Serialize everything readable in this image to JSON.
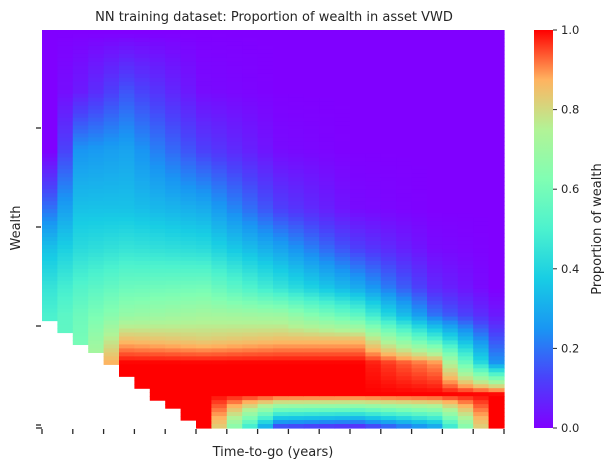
{
  "chart_data": {
    "type": "heatmap",
    "title": "NN training dataset: Proportion of wealth in asset VWD",
    "xlabel": "Time-to-go (years)",
    "ylabel": "Wealth",
    "x_tick_labels": [],
    "y_tick_labels": [],
    "n_columns": 30,
    "n_rows": 100,
    "grid": false,
    "colormap": "rainbow",
    "colorbar": {
      "label": "Proportion of wealth",
      "range": [
        0,
        1
      ],
      "ticks": [
        0.0,
        0.2,
        0.4,
        0.6,
        0.8,
        1.0
      ],
      "tick_labels": [
        "0.0",
        "0.2",
        "0.4",
        "0.6",
        "0.8",
        "1.0"
      ]
    },
    "value_range": [
      0,
      1
    ],
    "description_of_values": {
      "high_wealth_region": 0.0,
      "low_wealth_band": 1.0
    },
    "rows_stops": [
      0.0,
      0.15,
      0.3,
      0.45,
      0.55,
      0.65,
      0.72,
      0.78,
      0.84,
      0.92,
      1.0
    ],
    "column_profiles": [
      {
        "col": 0,
        "values": [
          0.0,
          0.0,
          0.0,
          0.2,
          0.35,
          0.45,
          0.5,
          0.5,
          0.5,
          0.5,
          0.5
        ]
      },
      {
        "col": 2,
        "values": [
          0.0,
          0.05,
          0.25,
          0.35,
          0.42,
          0.52,
          0.58,
          0.6,
          0.62,
          0.62,
          0.62
        ]
      },
      {
        "col": 5,
        "values": [
          0.0,
          0.15,
          0.28,
          0.35,
          0.45,
          0.58,
          0.68,
          0.85,
          1.0,
          1.0,
          1.0
        ]
      },
      {
        "col": 10,
        "values": [
          0.0,
          0.02,
          0.12,
          0.3,
          0.42,
          0.6,
          0.72,
          0.82,
          1.0,
          1.0,
          1.0
        ]
      },
      {
        "col": 15,
        "values": [
          0.0,
          0.0,
          0.02,
          0.12,
          0.28,
          0.45,
          0.7,
          0.85,
          1.0,
          1.0,
          0.15
        ]
      },
      {
        "col": 20,
        "values": [
          0.0,
          0.0,
          0.0,
          0.02,
          0.12,
          0.3,
          0.55,
          0.85,
          1.0,
          1.0,
          0.1
        ]
      },
      {
        "col": 25,
        "values": [
          0.0,
          0.0,
          0.0,
          0.0,
          0.02,
          0.08,
          0.2,
          0.5,
          0.9,
          1.0,
          0.3
        ]
      },
      {
        "col": 29,
        "values": [
          0.0,
          0.0,
          0.0,
          0.0,
          0.0,
          0.0,
          0.05,
          0.15,
          0.25,
          1.0,
          1.0
        ]
      }
    ]
  }
}
